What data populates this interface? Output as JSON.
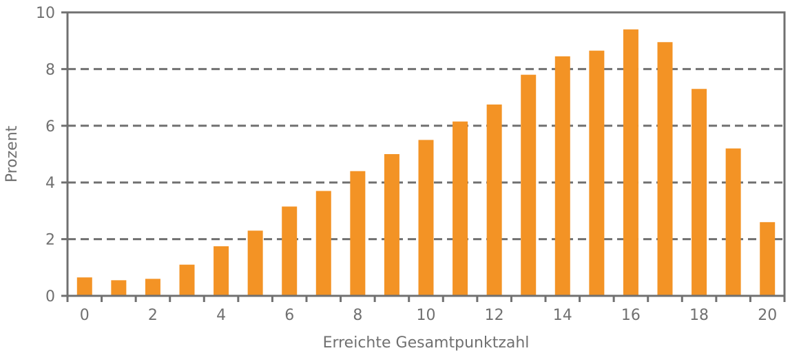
{
  "chart_data": {
    "type": "bar",
    "xlabel": "Erreichte Gesamtpunktzahl",
    "ylabel": "Prozent",
    "ylim": [
      0,
      10
    ],
    "yticks": [
      "0",
      "2",
      "4",
      "6",
      "8",
      "10"
    ],
    "categories": [
      "0",
      "1",
      "2",
      "3",
      "4",
      "5",
      "6",
      "7",
      "8",
      "9",
      "10",
      "11",
      "12",
      "13",
      "14",
      "15",
      "16",
      "17",
      "18",
      "19",
      "20"
    ],
    "xtick_labels": [
      "0",
      "",
      "2",
      "",
      "4",
      "",
      "6",
      "",
      "8",
      "",
      "10",
      "",
      "12",
      "",
      "14",
      "",
      "16",
      "",
      "18",
      "",
      "20"
    ],
    "values": [
      0.65,
      0.55,
      0.6,
      1.1,
      1.75,
      2.3,
      3.15,
      3.7,
      4.4,
      5.0,
      5.5,
      6.15,
      6.75,
      7.8,
      8.45,
      8.65,
      9.4,
      8.95,
      7.3,
      5.2,
      2.6
    ],
    "grid": "dashed horizontal",
    "colors": {
      "bar": "#f39325",
      "axis": "#707070",
      "grid": "#707070"
    }
  }
}
